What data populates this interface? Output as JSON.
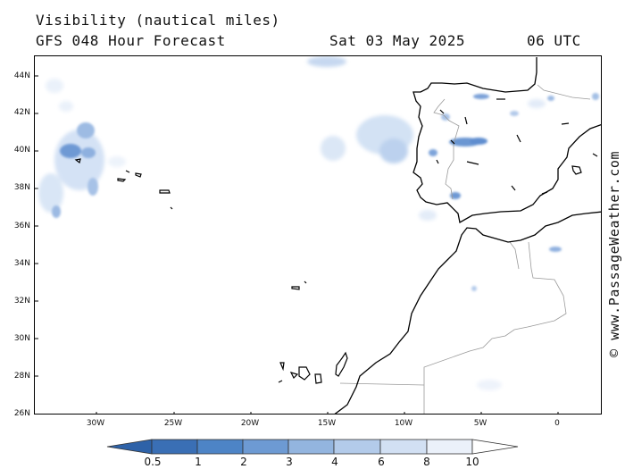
{
  "header": {
    "title": "Visibility (nautical miles)",
    "model": "GFS 048 Hour Forecast",
    "date": "Sat 03 May 2025",
    "time": "06 UTC"
  },
  "credit": "© www.PassageWeather.com",
  "lat_labels": [
    "44N",
    "42N",
    "40N",
    "38N",
    "36N",
    "34N",
    "32N",
    "30N",
    "28N",
    "26N"
  ],
  "lon_labels": [
    "30W",
    "25W",
    "20W",
    "15W",
    "10W",
    "5W",
    "0"
  ],
  "legend": {
    "labels": [
      "0.5",
      "1",
      "2",
      "3",
      "4",
      "6",
      "8",
      "10"
    ],
    "colors": [
      "#3a6fb5",
      "#4d84c6",
      "#6d9ad3",
      "#93b5df",
      "#b3cbea",
      "#d2e0f3",
      "#ebf1fa",
      "#ffffff"
    ]
  },
  "colors": {
    "land_outline": "#000000",
    "borders": "#9a9a9a",
    "low_vis": "#5b8fd0",
    "haze": "#cdddf2"
  }
}
